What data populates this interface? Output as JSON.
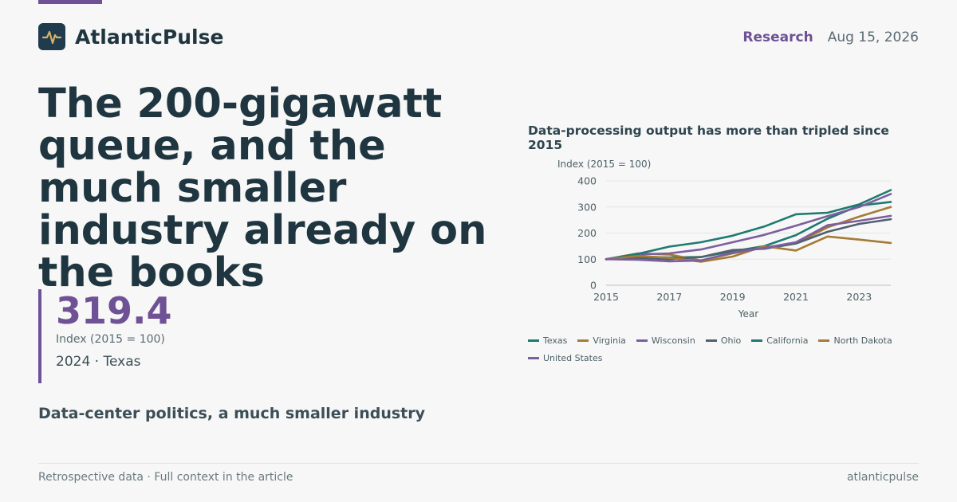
{
  "colors": {
    "accent": "#6f5196",
    "teal": "#1f7a70",
    "gold": "#a67b35",
    "purple": "#7d5e9f",
    "slate": "#4f6170",
    "grid": "#e4e7e7",
    "axis": "#b8c0c3",
    "tick_text": "#4d5f67"
  },
  "brand": {
    "name": "AtlanticPulse",
    "logo_icon": "pulse-wave-icon"
  },
  "header": {
    "section": "Research",
    "date": "Aug 15, 2026"
  },
  "headline": "The 200-gigawatt queue, and the much smaller industry already on the books",
  "stat": {
    "value": "319.4",
    "unit": "Index (2015 = 100)",
    "context": "2024 · Texas"
  },
  "subhead": "Data-center politics, a much smaller industry",
  "footer": {
    "left": "Retrospective data · Full context in the article",
    "right": "atlanticpulse"
  },
  "chart_data": {
    "type": "line",
    "title": "Data-processing output has more than tripled since 2015",
    "ylabel": "Index (2015 = 100)",
    "xlabel": "Year",
    "x": [
      2015,
      2016,
      2017,
      2018,
      2019,
      2020,
      2021,
      2022,
      2023,
      2024
    ],
    "xticks": [
      "2015",
      "2017",
      "2019",
      "2021",
      "2023"
    ],
    "xlim": [
      2015,
      2024
    ],
    "yticks": [
      "0",
      "100",
      "200",
      "300",
      "400"
    ],
    "ylim": [
      0,
      400
    ],
    "grid": true,
    "legend_position": "bottom",
    "series": [
      {
        "name": "Texas",
        "color": "#1f7a70",
        "values": [
          100,
          110,
          107,
          108,
          130,
          150,
          192,
          255,
          305,
          319.4
        ]
      },
      {
        "name": "Virginia",
        "color": "#a67b35",
        "values": [
          100,
          122,
          118,
          95,
          122,
          145,
          160,
          222,
          263,
          300
        ]
      },
      {
        "name": "Wisconsin",
        "color": "#7d5e9f",
        "values": [
          100,
          118,
          122,
          137,
          165,
          193,
          228,
          265,
          300,
          350
        ]
      },
      {
        "name": "Ohio",
        "color": "#4f6170",
        "values": [
          100,
          105,
          100,
          108,
          135,
          140,
          160,
          205,
          235,
          253
        ]
      },
      {
        "name": "California",
        "color": "#1f7a70",
        "values": [
          100,
          120,
          148,
          165,
          190,
          225,
          272,
          278,
          310,
          365
        ]
      },
      {
        "name": "North Dakota",
        "color": "#a67b35",
        "values": [
          100,
          112,
          105,
          90,
          110,
          150,
          133,
          187,
          175,
          162
        ]
      },
      {
        "name": "United States",
        "color": "#7d5e9f",
        "values": [
          100,
          98,
          92,
          95,
          125,
          143,
          165,
          230,
          247,
          266
        ]
      }
    ]
  }
}
